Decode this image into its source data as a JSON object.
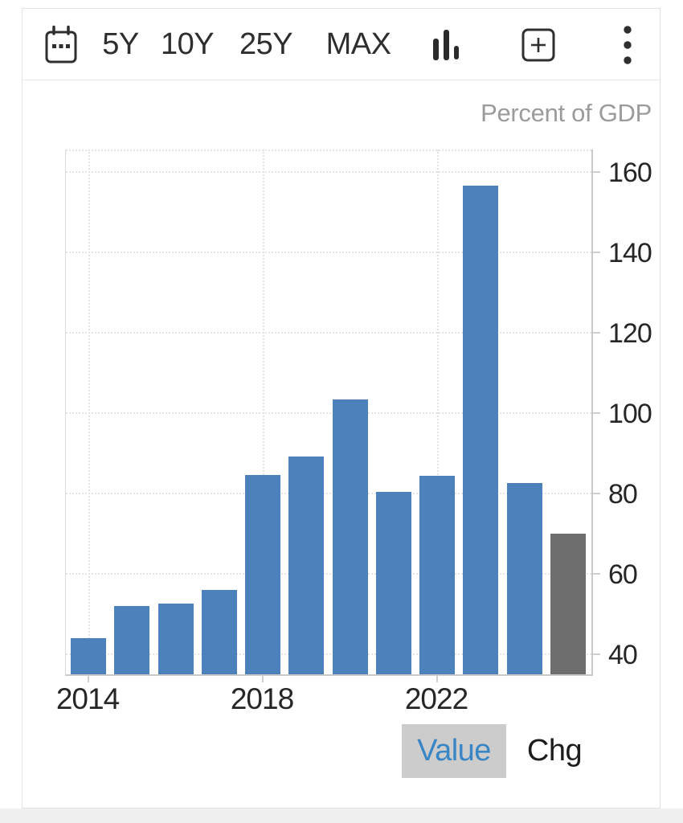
{
  "toolbar": {
    "ranges": [
      "5Y",
      "10Y",
      "25Y",
      "MAX"
    ],
    "icons": [
      "calendar-icon",
      "bar-chart-icon",
      "add-compare-icon",
      "kebab-menu-icon"
    ]
  },
  "chart": {
    "unit_label": "Percent of GDP"
  },
  "chart_data": {
    "type": "bar",
    "title": "",
    "ylabel": "Percent of GDP",
    "categories": [
      "2014",
      "2015",
      "2016",
      "2017",
      "2018",
      "2019",
      "2020",
      "2021",
      "2022",
      "2023",
      "2024",
      "2025"
    ],
    "values": [
      43.4,
      51.3,
      51.9,
      55.4,
      84.1,
      88.6,
      102.7,
      79.7,
      83.7,
      155.9,
      81.9,
      69.4
    ],
    "y_ticks": [
      40,
      60,
      80,
      100,
      120,
      140,
      160
    ],
    "x_tick_labels": [
      "2014",
      "2018",
      "2022"
    ],
    "ylim": [
      34.4,
      165.4
    ],
    "grid": "dotted",
    "legend": "none",
    "bar_color": "#4d81bc",
    "last_bar_color": "#6e6e6e"
  },
  "footer": {
    "value_label": "Value",
    "chg_label": "Chg",
    "selected": "Value"
  },
  "colors": {
    "accent_blue": "#3986c7",
    "bar_blue": "#4d81bc",
    "bar_gray": "#6e6e6e",
    "muted_text": "#9b9b9b",
    "dark_text": "#2e2e2e",
    "selected_btn_bg": "#cccccc"
  }
}
